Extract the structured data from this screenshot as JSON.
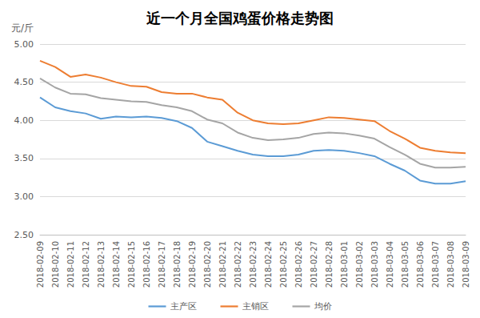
{
  "chart_data": {
    "type": "line",
    "title": "近一个月全国鸡蛋价格走势图",
    "ylabel": "元/斤",
    "categories": [
      "2018-02-09",
      "2018-02-10",
      "2018-02-11",
      "2018-02-12",
      "2018-02-13",
      "2018-02-14",
      "2018-02-15",
      "2018-02-16",
      "2018-02-17",
      "2018-02-18",
      "2018-02-19",
      "2018-02-20",
      "2018-02-21",
      "2018-02-22",
      "2018-02-23",
      "2018-02-24",
      "2018-02-25",
      "2018-02-26",
      "2018-02-27",
      "2018-02-28",
      "2018-03-01",
      "2018-03-02",
      "2018-03-03",
      "2018-03-04",
      "2018-03-05",
      "2018-03-06",
      "2018-03-07",
      "2018-03-08",
      "2018-03-09"
    ],
    "series": [
      {
        "name": "主产区",
        "color": "#5b9bd5",
        "values": [
          4.3,
          4.17,
          4.12,
          4.09,
          4.02,
          4.05,
          4.04,
          4.05,
          4.03,
          3.99,
          3.9,
          3.72,
          3.66,
          3.6,
          3.55,
          3.53,
          3.53,
          3.55,
          3.6,
          3.61,
          3.6,
          3.57,
          3.53,
          3.43,
          3.34,
          3.21,
          3.17,
          3.17,
          3.2
        ]
      },
      {
        "name": "主销区",
        "color": "#ed7d31",
        "values": [
          4.78,
          4.7,
          4.57,
          4.6,
          4.56,
          4.5,
          4.45,
          4.44,
          4.37,
          4.35,
          4.35,
          4.3,
          4.27,
          4.1,
          4.0,
          3.96,
          3.95,
          3.96,
          4.0,
          4.04,
          4.03,
          4.01,
          3.99,
          3.86,
          3.76,
          3.64,
          3.6,
          3.58,
          3.57
        ]
      },
      {
        "name": "均价",
        "color": "#a5a5a5",
        "values": [
          4.55,
          4.43,
          4.35,
          4.34,
          4.29,
          4.27,
          4.25,
          4.24,
          4.2,
          4.17,
          4.12,
          4.01,
          3.96,
          3.84,
          3.77,
          3.74,
          3.75,
          3.77,
          3.82,
          3.84,
          3.83,
          3.8,
          3.76,
          3.65,
          3.55,
          3.43,
          3.38,
          3.38,
          3.39
        ]
      }
    ],
    "ylim": [
      2.5,
      5.0
    ],
    "yticks": [
      {
        "value": 2.5,
        "label": "2.50"
      },
      {
        "value": 3.0,
        "label": "3.00"
      },
      {
        "value": 3.5,
        "label": "3.50"
      },
      {
        "value": 4.0,
        "label": "4.00"
      },
      {
        "value": 4.5,
        "label": "4.50"
      },
      {
        "value": 5.0,
        "label": "5.00"
      }
    ],
    "grid": true,
    "legend": "bottom",
    "marker": "none"
  }
}
